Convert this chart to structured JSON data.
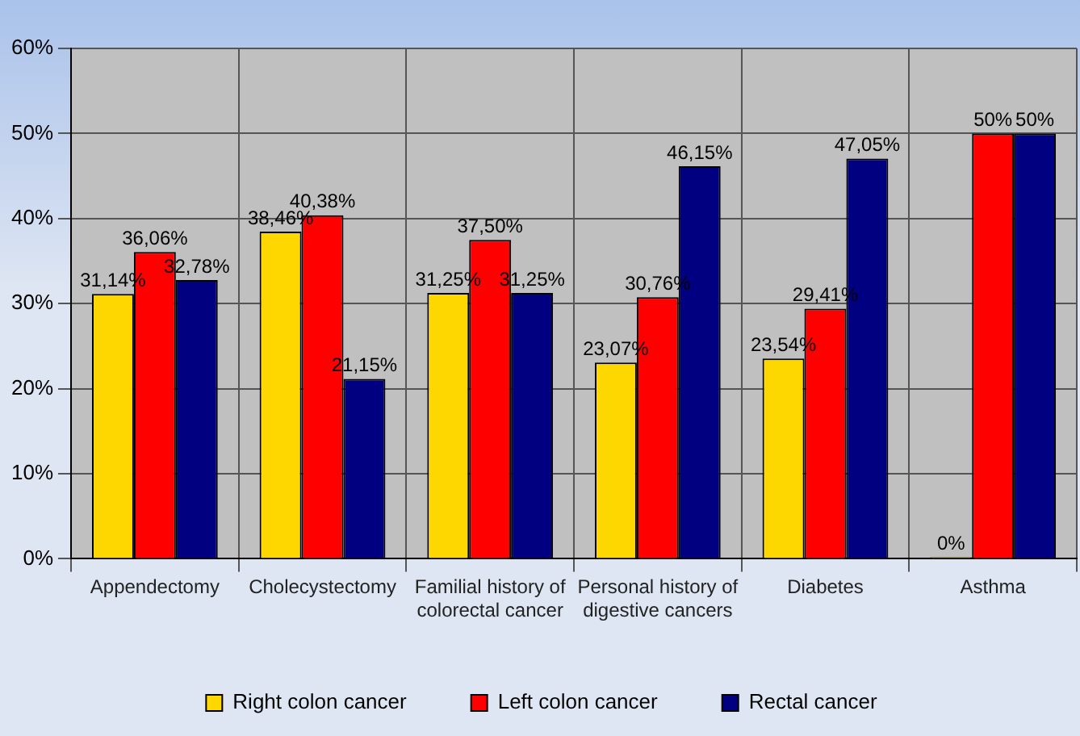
{
  "chart_data": {
    "type": "bar",
    "categories": [
      "Appendectomy",
      "Cholecystectomy",
      "Familial history of colorectal cancer",
      "Personal history of digestive cancers",
      "Diabetes",
      "Asthma"
    ],
    "series": [
      {
        "name": "Right colon cancer",
        "color": "#ffd700",
        "values": [
          31.14,
          38.46,
          31.25,
          23.07,
          23.54,
          0
        ],
        "value_labels": [
          "31,14%",
          "38,46%",
          "31,25%",
          "23,07%",
          "23,54%",
          "0%"
        ]
      },
      {
        "name": "Left colon cancer",
        "color": "#ff0000",
        "values": [
          36.06,
          40.38,
          37.5,
          30.76,
          29.41,
          50
        ],
        "value_labels": [
          "36,06%",
          "40,38%",
          "37,50%",
          "30,76%",
          "29,41%",
          "50%"
        ]
      },
      {
        "name": "Rectal cancer",
        "color": "#000080",
        "values": [
          32.78,
          21.15,
          31.25,
          46.15,
          47.05,
          50
        ],
        "value_labels": [
          "32,78%",
          "21,15%",
          "31,25%",
          "46,15%",
          "47,05%",
          "50%"
        ]
      }
    ],
    "ylim": [
      0,
      60
    ],
    "yticks": [
      {
        "value": 0,
        "label": "0%"
      },
      {
        "value": 10,
        "label": "10%"
      },
      {
        "value": 20,
        "label": "20%"
      },
      {
        "value": 30,
        "label": "30%"
      },
      {
        "value": 40,
        "label": "40%"
      },
      {
        "value": 50,
        "label": "50%"
      },
      {
        "value": 60,
        "label": "60%"
      }
    ],
    "grid": true,
    "legend": "bottom"
  }
}
